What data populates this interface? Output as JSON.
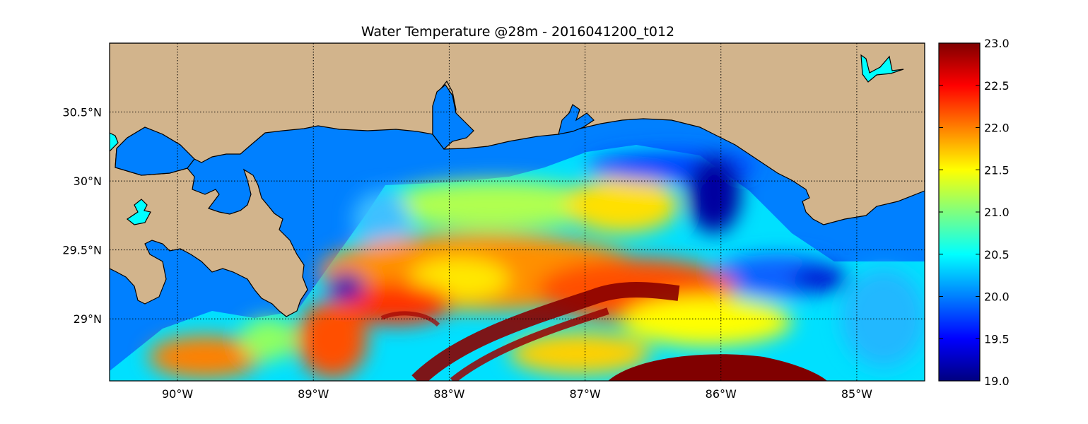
{
  "title": "Water Temperature @28m - 2016041200_t012",
  "map": {
    "lon_range": [
      -90.5,
      -84.5
    ],
    "lat_range": [
      28.55,
      31.0
    ],
    "lon_ticks": [
      {
        "value": -90,
        "label": "90°W"
      },
      {
        "value": -89,
        "label": "89°W"
      },
      {
        "value": -88,
        "label": "88°W"
      },
      {
        "value": -87,
        "label": "87°W"
      },
      {
        "value": -86,
        "label": "86°W"
      },
      {
        "value": -85,
        "label": "85°W"
      }
    ],
    "lat_ticks": [
      {
        "value": 30.5,
        "label": "30.5°N"
      },
      {
        "value": 30.0,
        "label": "30°N"
      },
      {
        "value": 29.5,
        "label": "29.5°N"
      },
      {
        "value": 29.0,
        "label": "29°N"
      }
    ],
    "gridlines": "dotted",
    "colors": {
      "land": "#d2b48c",
      "water_no_data": "#0080ff",
      "lakes": "#00ffff",
      "coastline": "#000000"
    }
  },
  "colorbar": {
    "colormap": "jet",
    "vmin": 19.0,
    "vmax": 23.0,
    "ticks": [
      "23.0",
      "22.5",
      "22.0",
      "21.5",
      "21.0",
      "20.5",
      "20.0",
      "19.5",
      "19.0"
    ]
  }
}
